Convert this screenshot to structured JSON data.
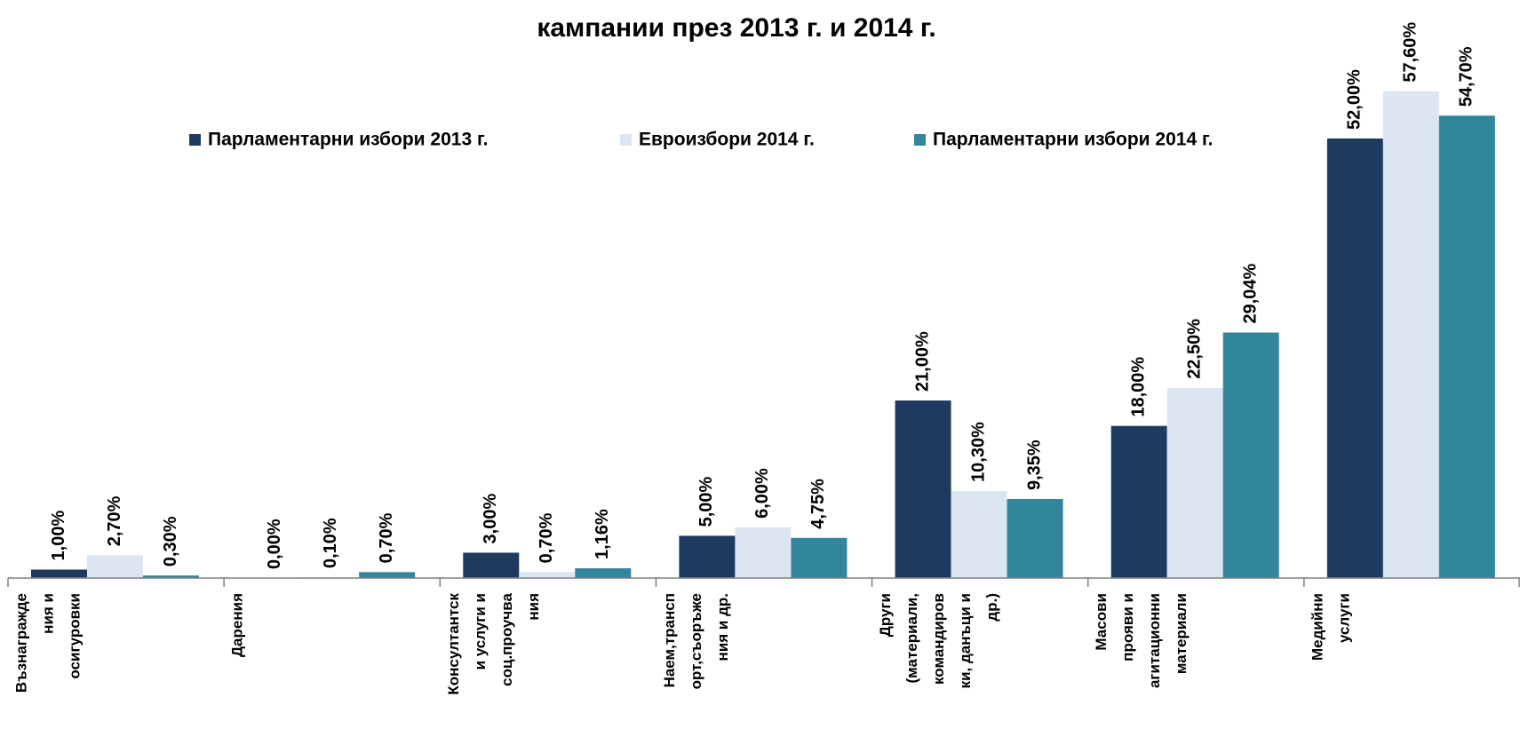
{
  "chart_data": {
    "type": "bar",
    "title": "кампании през 2013 г. и 2014 г.",
    "categories": [
      [
        "Възнагражде",
        "ния и",
        "осигуровки"
      ],
      [
        "Дарения"
      ],
      [
        "Консултантск",
        "и услуги и",
        "соц.проучва",
        "ния"
      ],
      [
        "Наем,трансп",
        "орт,съоръже",
        "ния и др."
      ],
      [
        "Други",
        "(материали,",
        "командиров",
        "ки, данъци и",
        "др.)"
      ],
      [
        "Масови",
        "прояви и",
        "агитационни",
        "материали"
      ],
      [
        "Медийни",
        "услуги"
      ]
    ],
    "series": [
      {
        "name": "Парламентарни избори 2013 г.",
        "color": "#1f3a5f",
        "values": [
          1,
          0,
          3,
          5,
          21,
          18,
          52
        ],
        "value_labels": [
          "1,00%",
          "0,00%",
          "3,00%",
          "5,00%",
          "21,00%",
          "18,00%",
          "52,00%"
        ]
      },
      {
        "name": "Евроизбори 2014 г.",
        "color": "#dce6f2",
        "values": [
          2.7,
          0.1,
          0.7,
          6,
          10.3,
          22.5,
          57.6
        ],
        "value_labels": [
          "2,70%",
          "0,10%",
          "0,70%",
          "6,00%",
          "10,30%",
          "22,50%",
          "57,60%"
        ]
      },
      {
        "name": "Парламентарни избори 2014 г.",
        "color": "#31859c",
        "values": [
          0.3,
          0.7,
          1.16,
          4.75,
          9.35,
          29.04,
          54.7
        ],
        "value_labels": [
          "0,30%",
          "0,70%",
          "1,16%",
          "4,75%",
          "9,35%",
          "29,04%",
          "54,70%"
        ]
      }
    ],
    "legend": "top"
  }
}
